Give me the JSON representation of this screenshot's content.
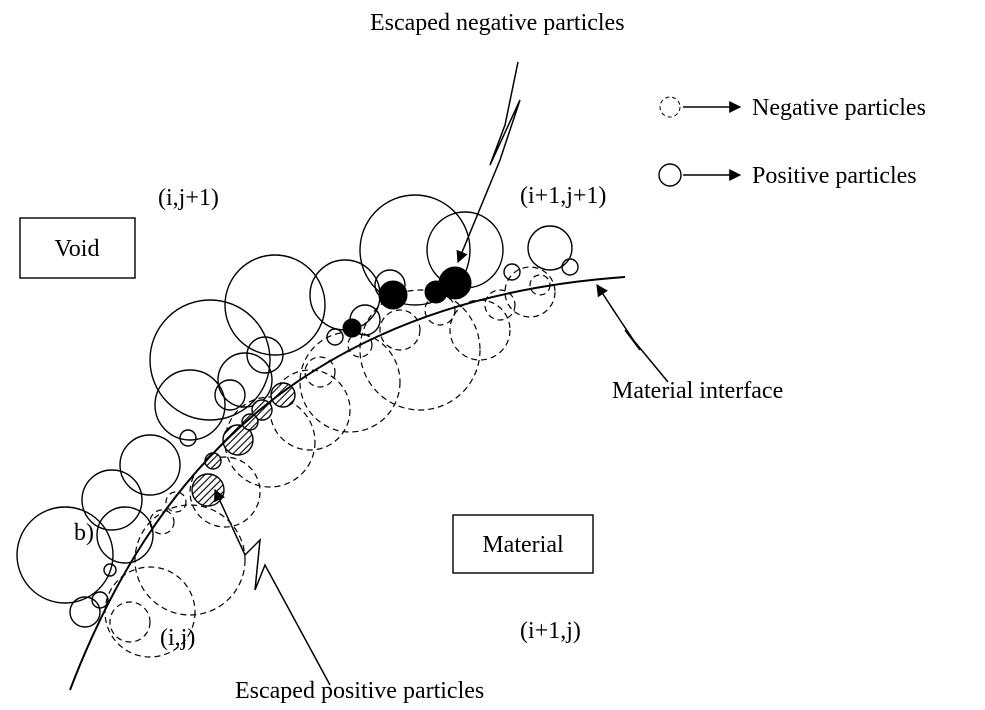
{
  "labels": {
    "escaped_negative": "Escaped negative particles",
    "escaped_positive": "Escaped positive particles",
    "interface": "Material interface",
    "void": "Void",
    "material": "Material",
    "b": "b)"
  },
  "cells": [
    "(i,j+1)",
    "(i+1,j+1)",
    "(i,j)",
    "(i+1,j)"
  ],
  "legend": [
    {
      "label": "Negative particles"
    },
    {
      "label": "Positive particles"
    }
  ]
}
